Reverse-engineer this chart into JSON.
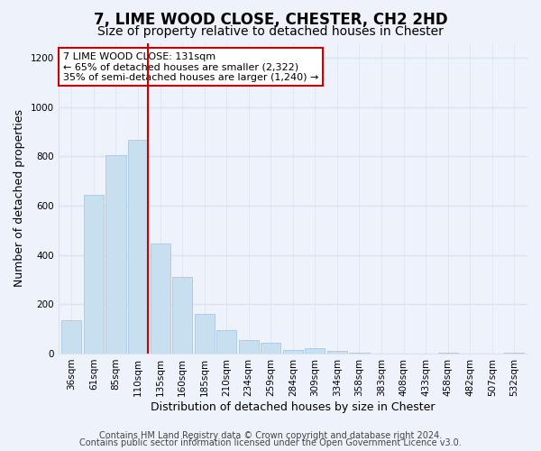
{
  "title": "7, LIME WOOD CLOSE, CHESTER, CH2 2HD",
  "subtitle": "Size of property relative to detached houses in Chester",
  "xlabel": "Distribution of detached houses by size in Chester",
  "ylabel": "Number of detached properties",
  "categories": [
    "36sqm",
    "61sqm",
    "85sqm",
    "110sqm",
    "135sqm",
    "160sqm",
    "185sqm",
    "210sqm",
    "234sqm",
    "259sqm",
    "284sqm",
    "309sqm",
    "334sqm",
    "358sqm",
    "383sqm",
    "408sqm",
    "433sqm",
    "458sqm",
    "482sqm",
    "507sqm",
    "532sqm"
  ],
  "values": [
    135,
    645,
    805,
    865,
    445,
    310,
    160,
    95,
    55,
    42,
    15,
    20,
    10,
    3,
    0,
    0,
    0,
    5,
    0,
    0,
    2
  ],
  "bar_color": "#c8dff0",
  "bar_edgecolor": "#a0c0e0",
  "vline_color": "#cc0000",
  "annotation_title": "7 LIME WOOD CLOSE: 131sqm",
  "annotation_line1": "← 65% of detached houses are smaller (2,322)",
  "annotation_line2": "35% of semi-detached houses are larger (1,240) →",
  "annotation_box_color": "#ffffff",
  "annotation_box_edgecolor": "#cc0000",
  "ylim": [
    0,
    1260
  ],
  "yticks": [
    0,
    200,
    400,
    600,
    800,
    1000,
    1200
  ],
  "footer_line1": "Contains HM Land Registry data © Crown copyright and database right 2024.",
  "footer_line2": "Contains public sector information licensed under the Open Government Licence v3.0.",
  "background_color": "#eef2fa",
  "grid_color": "#d8e4f0",
  "title_fontsize": 12,
  "subtitle_fontsize": 10,
  "axis_label_fontsize": 9,
  "tick_fontsize": 7.5,
  "footer_fontsize": 7,
  "vline_bar_idx": 3
}
